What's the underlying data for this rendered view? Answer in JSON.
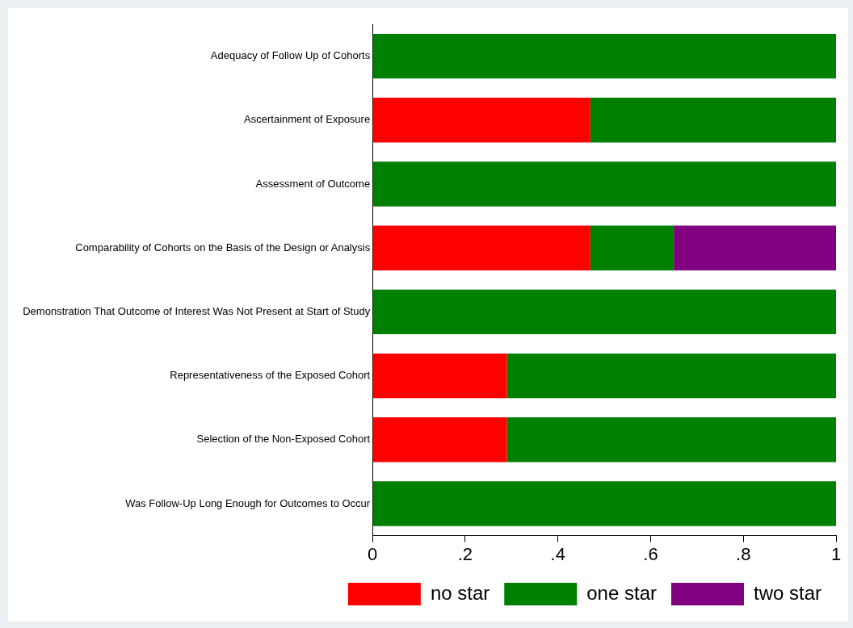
{
  "chart_data": {
    "type": "bar",
    "orientation": "horizontal",
    "stacked": true,
    "categories": [
      "Adequacy of Follow Up of Cohorts",
      "Ascertainment of Exposure",
      "Assessment of Outcome",
      "Comparability of Cohorts on the Basis of the Design or Analysis",
      "Demonstration That Outcome of Interest Was Not Present at Start of Study",
      "Representativeness of the Exposed Cohort",
      "Selection of the Non-Exposed Cohort",
      "Was Follow-Up Long Enough for Outcomes to Occur"
    ],
    "series": [
      {
        "name": "no star",
        "color": "#ff0000",
        "values": [
          0,
          0.47,
          0,
          0.47,
          0,
          0.29,
          0.29,
          0
        ]
      },
      {
        "name": "one star",
        "color": "#008000",
        "values": [
          1,
          0.53,
          1,
          0.18,
          1,
          0.71,
          0.71,
          1
        ]
      },
      {
        "name": "two star",
        "color": "#800080",
        "values": [
          0,
          0,
          0,
          0.35,
          0,
          0,
          0,
          0
        ]
      }
    ],
    "xlim": [
      0,
      1
    ],
    "xticks": [
      0,
      {
        "value": 0.2,
        "label": ".2"
      },
      {
        "value": 0.4,
        "label": ".4"
      },
      {
        "value": 0.6,
        "label": ".6"
      },
      {
        "value": 0.8,
        "label": ".8"
      },
      1
    ],
    "grid": false,
    "legend": "bottom right"
  }
}
